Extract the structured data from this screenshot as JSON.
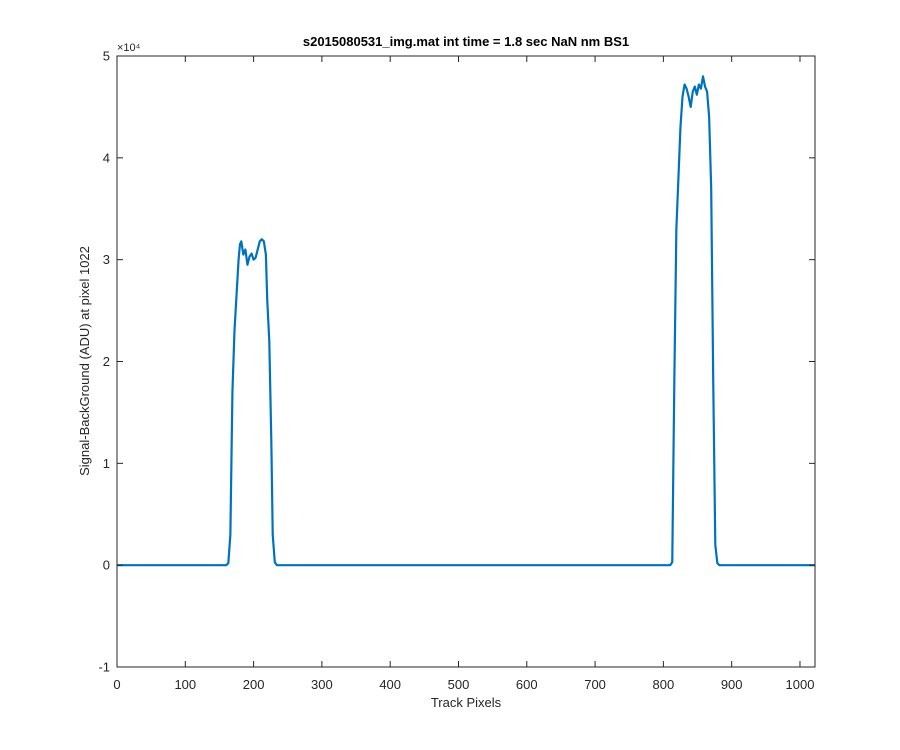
{
  "chart_data": {
    "type": "line",
    "title": "s2015080531_img.mat int time = 1.8 sec  NaN nm BS1",
    "xlabel": "Track Pixels",
    "ylabel": "Signal-BackGround (ADU) at pixel 1022",
    "xlim": [
      0,
      1022
    ],
    "ylim": [
      -10000,
      50000
    ],
    "x_ticks": [
      0,
      100,
      200,
      300,
      400,
      500,
      600,
      700,
      800,
      900,
      1000
    ],
    "y_ticks": [
      -1,
      0,
      1,
      2,
      3,
      4,
      5
    ],
    "y_tick_labels": [
      "-1",
      "0",
      "1",
      "2",
      "3",
      "4",
      "5"
    ],
    "y_exponent_label": "×10⁴",
    "y_tick_scale": 10000,
    "grid": false,
    "box": true,
    "series": [
      {
        "color": "#0072bd",
        "points": [
          [
            0,
            0
          ],
          [
            160,
            0
          ],
          [
            163,
            200
          ],
          [
            166,
            3000
          ],
          [
            169,
            17000
          ],
          [
            172,
            23000
          ],
          [
            175,
            26500
          ],
          [
            178,
            30000
          ],
          [
            180,
            31500
          ],
          [
            182,
            31800
          ],
          [
            185,
            30500
          ],
          [
            188,
            31000
          ],
          [
            191,
            29500
          ],
          [
            194,
            30300
          ],
          [
            197,
            30600
          ],
          [
            200,
            30000
          ],
          [
            203,
            30200
          ],
          [
            206,
            31000
          ],
          [
            209,
            31800
          ],
          [
            212,
            32000
          ],
          [
            215,
            31800
          ],
          [
            218,
            30500
          ],
          [
            220,
            26000
          ],
          [
            223,
            22000
          ],
          [
            226,
            12000
          ],
          [
            228,
            3000
          ],
          [
            231,
            300
          ],
          [
            234,
            0
          ],
          [
            810,
            0
          ],
          [
            813,
            300
          ],
          [
            816,
            18000
          ],
          [
            819,
            33000
          ],
          [
            822,
            38000
          ],
          [
            825,
            43000
          ],
          [
            828,
            46000
          ],
          [
            831,
            47200
          ],
          [
            834,
            46800
          ],
          [
            837,
            46000
          ],
          [
            840,
            45000
          ],
          [
            843,
            46500
          ],
          [
            846,
            47000
          ],
          [
            849,
            46200
          ],
          [
            852,
            47200
          ],
          [
            855,
            46800
          ],
          [
            858,
            48000
          ],
          [
            861,
            47000
          ],
          [
            864,
            46500
          ],
          [
            867,
            44000
          ],
          [
            870,
            37000
          ],
          [
            873,
            18000
          ],
          [
            876,
            2000
          ],
          [
            879,
            200
          ],
          [
            882,
            0
          ],
          [
            1022,
            0
          ]
        ]
      }
    ]
  }
}
